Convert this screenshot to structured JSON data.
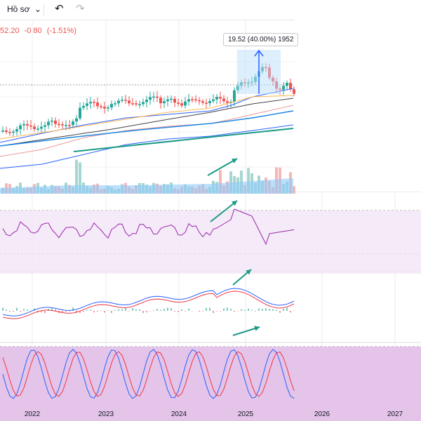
{
  "toolbar": {
    "profile_label": "Hồ sơ",
    "dropdown_glyph": "⌄",
    "undo_glyph": "↶",
    "redo_glyph": "↷"
  },
  "legend": {
    "price": "52.20",
    "change": "-0.80",
    "change_pct": "(-1.51%)",
    "color": "#ef5350"
  },
  "measure": {
    "label": "19.52 (40.00%) 1952",
    "color": "#2962ff"
  },
  "colors": {
    "up": "#26a69a",
    "down": "#ef5350",
    "rsi_line": "#9c27b0",
    "macd": "#2962ff",
    "signal": "#f23645",
    "bb": "#2962ff"
  },
  "chart_data": {
    "type": "candlestick",
    "x_ticks": [
      "2022",
      "2023",
      "2024",
      "2025",
      "2026",
      "2027"
    ],
    "panes": [
      "price",
      "rsi",
      "macd",
      "stochastic"
    ]
  }
}
